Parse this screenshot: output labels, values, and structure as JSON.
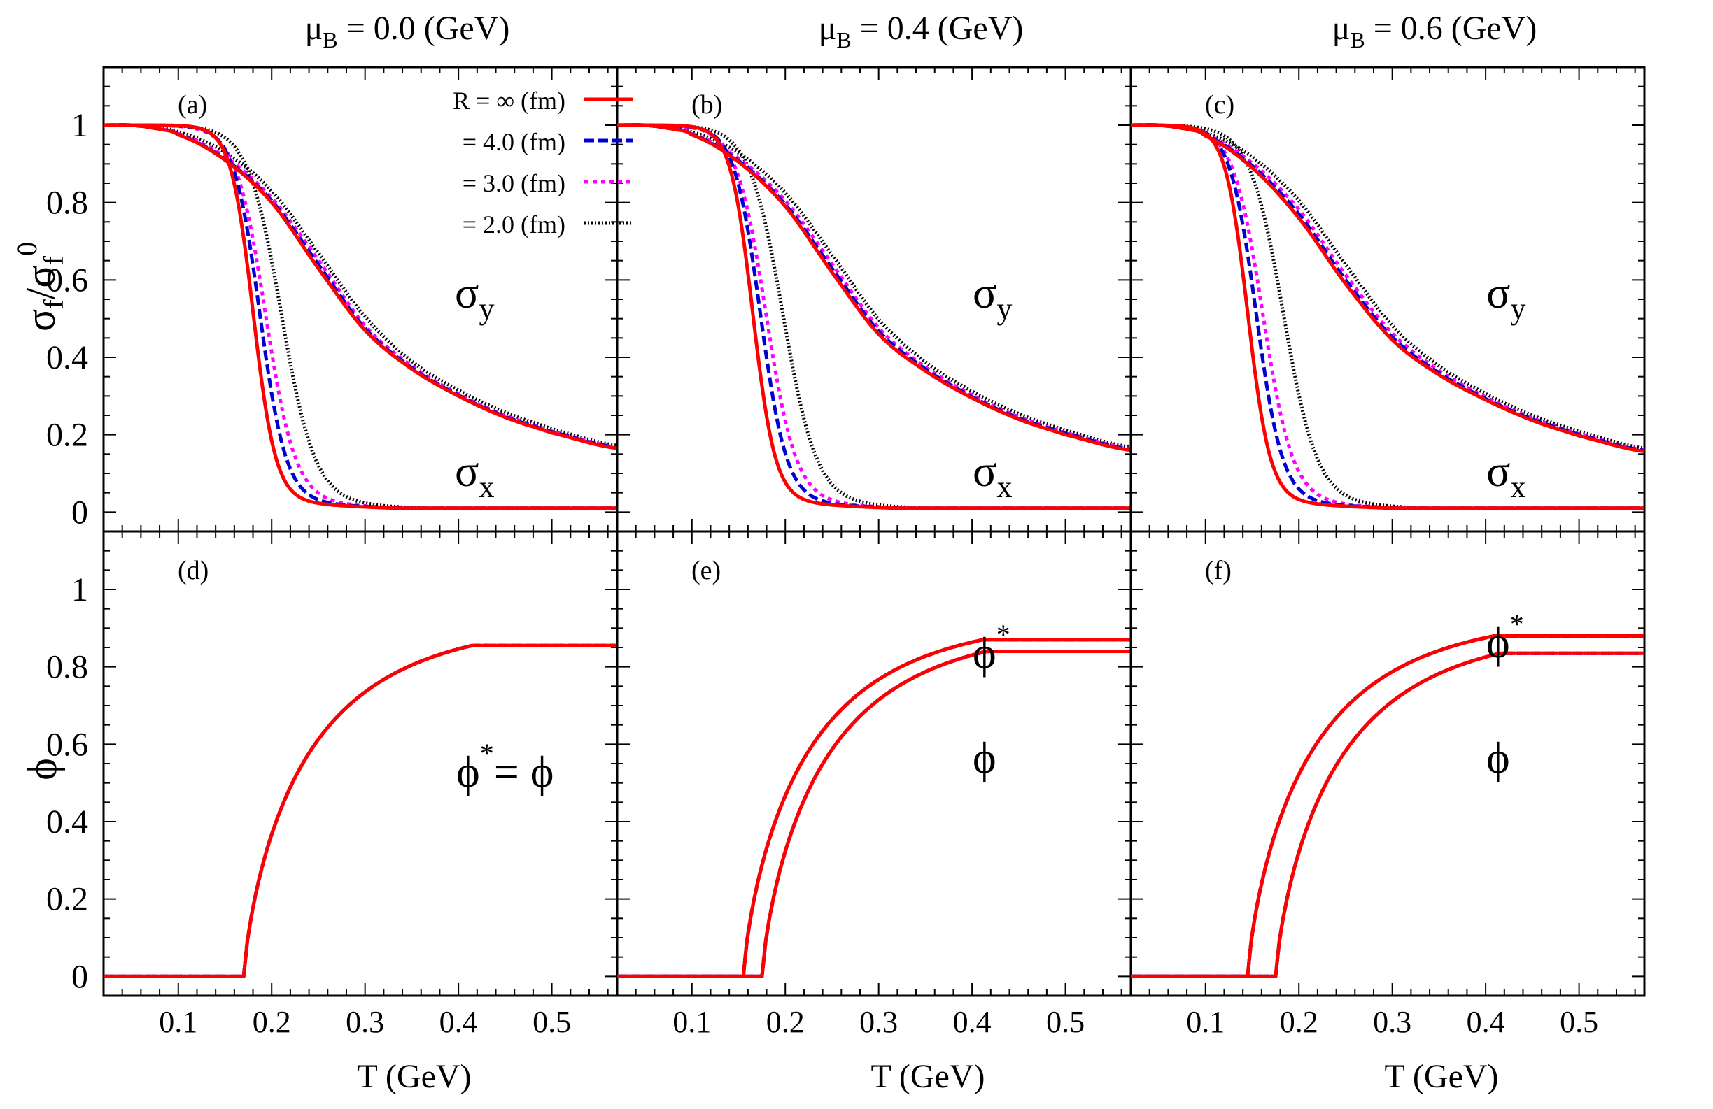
{
  "figure": {
    "x_axis_label": "T (GeV)",
    "top_y_label_main": "σ",
    "top_y_label_sub": "f",
    "top_y_label_sep": "/σ",
    "top_y_label_sub2": "f",
    "top_y_label_sup": "0",
    "bottom_y_label": "ϕ",
    "x_tick_labels": [
      "0.1",
      "0.2",
      "0.3",
      "0.4",
      "0.5"
    ],
    "y_tick_labels": [
      "0",
      "0.2",
      "0.4",
      "0.6",
      "0.8",
      "1"
    ]
  },
  "legend": {
    "entries": [
      {
        "label": "R = ∞   (fm)",
        "color": "#ff0000",
        "style": "solid"
      },
      {
        "label": "= 4.0 (fm)",
        "color": "#0000d0",
        "style": "dashed"
      },
      {
        "label": "= 3.0 (fm)",
        "color": "#ff00ff",
        "style": "dotted"
      },
      {
        "label": "= 2.0 (fm)",
        "color": "#000000",
        "style": "dense-dotted"
      }
    ]
  },
  "columns": [
    {
      "title_main": "μ",
      "title_sub": "B",
      "title_rest": " = 0.0 (GeV)"
    },
    {
      "title_main": "μ",
      "title_sub": "B",
      "title_rest": " = 0.4 (GeV)"
    },
    {
      "title_main": "μ",
      "title_sub": "B",
      "title_rest": " = 0.6 (GeV)"
    }
  ],
  "panels": {
    "a": {
      "label": "(a)",
      "sigma_y": "σ",
      "sigma_y_sub": "y",
      "sigma_x": "σ",
      "sigma_x_sub": "x"
    },
    "b": {
      "label": "(b)",
      "sigma_y": "σ",
      "sigma_y_sub": "y",
      "sigma_x": "σ",
      "sigma_x_sub": "x"
    },
    "c": {
      "label": "(c)",
      "sigma_y": "σ",
      "sigma_y_sub": "y",
      "sigma_x": "σ",
      "sigma_x_sub": "x"
    },
    "d": {
      "label": "(d)",
      "phi_star_eq": "ϕ",
      "phi_star_sup": "*",
      "phi_eq_rest": "= ϕ"
    },
    "e": {
      "label": "(e)",
      "phi_star": "ϕ",
      "phi_star_sup": "*",
      "phi": "ϕ"
    },
    "f": {
      "label": "(f)",
      "phi_star": "ϕ",
      "phi_star_sup": "*",
      "phi": "ϕ"
    }
  },
  "chart_data": {
    "type": "line",
    "x_range": [
      0.02,
      0.57
    ],
    "y_range": [
      -0.05,
      1.15
    ],
    "x_ticks": [
      0.1,
      0.2,
      0.3,
      0.4,
      0.5
    ],
    "y_ticks": [
      0,
      0.2,
      0.4,
      0.6,
      0.8,
      1
    ],
    "radii": [
      "∞",
      "4.0",
      "3.0",
      "2.0"
    ],
    "sigma_y_curves": [
      {
        "mu_B": 0.0,
        "x": [
          0.02,
          0.05,
          0.08,
          0.1,
          0.15,
          0.2,
          0.25,
          0.3,
          0.35,
          0.4,
          0.45,
          0.5,
          0.57
        ],
        "y_by_radius": [
          [
            1.0,
            1.0,
            0.99,
            0.975,
            0.91,
            0.8,
            0.63,
            0.47,
            0.37,
            0.3,
            0.245,
            0.205,
            0.165
          ],
          [
            1.0,
            1.0,
            0.99,
            0.976,
            0.912,
            0.805,
            0.64,
            0.475,
            0.373,
            0.302,
            0.247,
            0.207,
            0.167
          ],
          [
            1.0,
            1.0,
            0.99,
            0.978,
            0.918,
            0.812,
            0.652,
            0.482,
            0.378,
            0.305,
            0.25,
            0.209,
            0.168
          ],
          [
            1.0,
            1.0,
            0.992,
            0.982,
            0.93,
            0.83,
            0.67,
            0.505,
            0.39,
            0.315,
            0.258,
            0.215,
            0.172
          ]
        ]
      },
      {
        "mu_B": 0.4,
        "x": [
          0.02,
          0.05,
          0.08,
          0.1,
          0.15,
          0.2,
          0.25,
          0.3,
          0.35,
          0.4,
          0.45,
          0.5,
          0.57
        ],
        "y_by_radius": [
          [
            1.0,
            1.0,
            0.99,
            0.975,
            0.905,
            0.79,
            0.62,
            0.46,
            0.365,
            0.295,
            0.24,
            0.2,
            0.16
          ],
          [
            1.0,
            1.0,
            0.99,
            0.976,
            0.908,
            0.795,
            0.63,
            0.468,
            0.37,
            0.298,
            0.243,
            0.203,
            0.162
          ],
          [
            1.0,
            1.0,
            0.99,
            0.978,
            0.914,
            0.805,
            0.642,
            0.476,
            0.375,
            0.302,
            0.246,
            0.205,
            0.164
          ],
          [
            1.0,
            1.0,
            0.992,
            0.982,
            0.928,
            0.825,
            0.665,
            0.498,
            0.388,
            0.312,
            0.254,
            0.211,
            0.168
          ]
        ]
      },
      {
        "mu_B": 0.6,
        "x": [
          0.02,
          0.05,
          0.08,
          0.1,
          0.15,
          0.2,
          0.25,
          0.3,
          0.35,
          0.4,
          0.45,
          0.5,
          0.57
        ],
        "y_by_radius": [
          [
            1.0,
            1.0,
            0.99,
            0.972,
            0.89,
            0.76,
            0.59,
            0.445,
            0.355,
            0.29,
            0.237,
            0.197,
            0.157
          ],
          [
            1.0,
            1.0,
            0.99,
            0.974,
            0.895,
            0.77,
            0.6,
            0.452,
            0.36,
            0.293,
            0.24,
            0.2,
            0.159
          ],
          [
            1.0,
            1.0,
            0.99,
            0.976,
            0.902,
            0.782,
            0.613,
            0.462,
            0.366,
            0.297,
            0.243,
            0.202,
            0.161
          ],
          [
            1.0,
            1.0,
            0.992,
            0.98,
            0.918,
            0.805,
            0.64,
            0.482,
            0.378,
            0.306,
            0.25,
            0.208,
            0.165
          ]
        ]
      }
    ],
    "sigma_x_curves": [
      {
        "mu_B": 0.0,
        "T_c_by_radius": [
          0.18,
          0.187,
          0.193,
          0.21
        ]
      },
      {
        "mu_B": 0.4,
        "T_c_by_radius": [
          0.165,
          0.173,
          0.179,
          0.197
        ]
      },
      {
        "mu_B": 0.6,
        "T_c_by_radius": [
          0.145,
          0.154,
          0.161,
          0.183
        ]
      }
    ],
    "phi_curves": [
      {
        "mu_B": 0.0,
        "onset_T": 0.17,
        "phi_at_0_57": 0.855,
        "phi_star_onset_T": 0.17,
        "phi_star_at_0_57": 0.855
      },
      {
        "mu_B": 0.4,
        "onset_T": 0.175,
        "phi_at_0_57": 0.84,
        "phi_star_onset_T": 0.155,
        "phi_star_at_0_57": 0.87
      },
      {
        "mu_B": 0.6,
        "onset_T": 0.175,
        "phi_at_0_57": 0.835,
        "phi_star_onset_T": 0.145,
        "phi_star_at_0_57": 0.88
      }
    ]
  }
}
